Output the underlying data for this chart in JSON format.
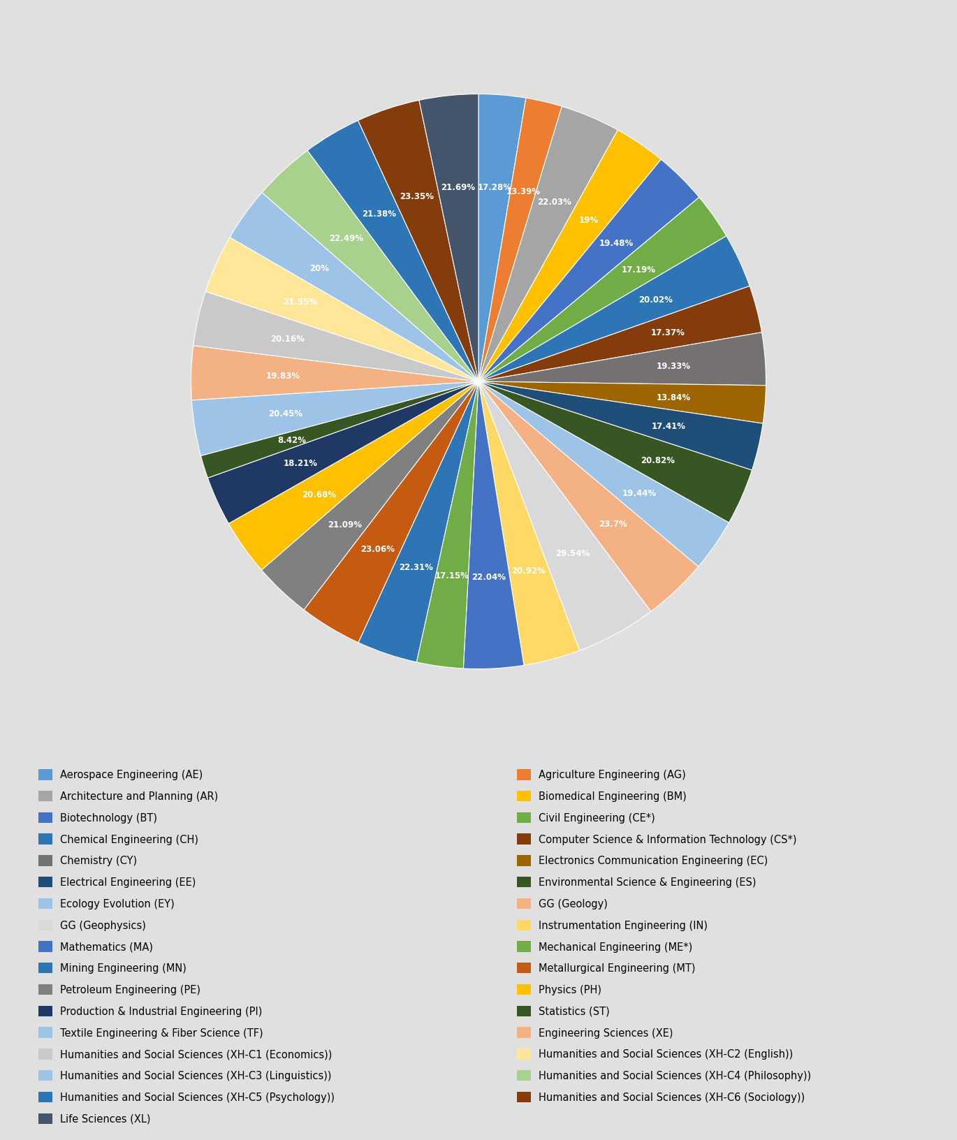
{
  "background_color": "#E0E0E0",
  "slices": [
    {
      "label": "Aerospace Engineering (AE)",
      "value": 17.28,
      "color": "#5B9BD5"
    },
    {
      "label": "Agriculture Engineering (AG)",
      "value": 13.39,
      "color": "#ED7D31"
    },
    {
      "label": "Architecture and Planning (AR)",
      "value": 22.03,
      "color": "#A5A5A5"
    },
    {
      "label": "Biomedical Engineering (BM)",
      "value": 19.0,
      "color": "#FFC000"
    },
    {
      "label": "Biotechnology (BT)",
      "value": 19.48,
      "color": "#4472C4"
    },
    {
      "label": "Civil Engineering (CE*)",
      "value": 17.19,
      "color": "#70AD47"
    },
    {
      "label": "Chemical Engineering (CH)",
      "value": 20.02,
      "color": "#2E75B6"
    },
    {
      "label": "Computer Science & Information Technology (CS*)",
      "value": 17.37,
      "color": "#843C0C"
    },
    {
      "label": "Chemistry (CY)",
      "value": 19.33,
      "color": "#767171"
    },
    {
      "label": "Electronics Communication Engineering (EC)",
      "value": 13.84,
      "color": "#9C6500"
    },
    {
      "label": "Electrical Engineering (EE)",
      "value": 17.41,
      "color": "#1F4E79"
    },
    {
      "label": "Environmental Science & Engineering (ES)",
      "value": 20.82,
      "color": "#375623"
    },
    {
      "label": "Ecology Evolution (EY)",
      "value": 19.44,
      "color": "#9DC3E6"
    },
    {
      "label": "GG (Geology)",
      "value": 23.7,
      "color": "#F4B183"
    },
    {
      "label": "GG (Geophysics)",
      "value": 29.54,
      "color": "#D9D9D9"
    },
    {
      "label": "Instrumentation Engineering (IN)",
      "value": 20.92,
      "color": "#FFD966"
    },
    {
      "label": "Mathematics (MA)",
      "value": 22.04,
      "color": "#4472C4"
    },
    {
      "label": "Mechanical Engineering (ME*)",
      "value": 17.15,
      "color": "#70AD47"
    },
    {
      "label": "Mining Engineering (MN)",
      "value": 22.31,
      "color": "#2E75B6"
    },
    {
      "label": "Metallurgical Engineering (MT)",
      "value": 23.06,
      "color": "#C55A11"
    },
    {
      "label": "Petroleum Engineering (PE)",
      "value": 21.09,
      "color": "#808080"
    },
    {
      "label": "Physics (PH)",
      "value": 20.68,
      "color": "#FFC000"
    },
    {
      "label": "Production & Industrial Engineering (PI)",
      "value": 18.21,
      "color": "#1F3864"
    },
    {
      "label": "Statistics (ST)",
      "value": 8.42,
      "color": "#375623"
    },
    {
      "label": "Textile Engineering & Fiber Science (TF)",
      "value": 20.45,
      "color": "#9DC3E6"
    },
    {
      "label": "Engineering Sciences (XE)",
      "value": 19.83,
      "color": "#F4B183"
    },
    {
      "label": "Humanities and Social Sciences (XH-C1 (Economics))",
      "value": 20.16,
      "color": "#C9C9C9"
    },
    {
      "label": "Humanities and Social Sciences (XH-C2 (English))",
      "value": 21.55,
      "color": "#FFE699"
    },
    {
      "label": "Humanities and Social Sciences (XH-C3 (Linguistics))",
      "value": 20.0,
      "color": "#9DC3E6"
    },
    {
      "label": "Humanities and Social Sciences (XH-C4 (Philosophy))",
      "value": 22.49,
      "color": "#A9D18E"
    },
    {
      "label": "Humanities and Social Sciences (XH-C5 (Psychology))",
      "value": 21.38,
      "color": "#2E75B6"
    },
    {
      "label": "Humanities and Social Sciences (XH-C6 (Sociology))",
      "value": 23.35,
      "color": "#843C0C"
    },
    {
      "label": "Life Sciences (XL)",
      "value": 21.69,
      "color": "#44546A"
    }
  ],
  "legend_left": [
    "Aerospace Engineering (AE)",
    "Architecture and Planning (AR)",
    "Biotechnology (BT)",
    "Chemical Engineering (CH)",
    "Chemistry (CY)",
    "Electrical Engineering (EE)",
    "Ecology Evolution (EY)",
    "GG (Geophysics)",
    "Mathematics (MA)",
    "Mining Engineering (MN)",
    "Petroleum Engineering (PE)",
    "Production & Industrial Engineering (PI)",
    "Textile Engineering & Fiber Science (TF)",
    "Humanities and Social Sciences (XH-C1 (Economics))",
    "Humanities and Social Sciences (XH-C3 (Linguistics))",
    "Humanities and Social Sciences (XH-C5 (Psychology))",
    "Life Sciences (XL)"
  ],
  "legend_right": [
    "Agriculture Engineering (AG)",
    "Biomedical Engineering (BM)",
    "Civil Engineering (CE*)",
    "Computer Science & Information Technology (CS*)",
    "Electronics Communication Engineering (EC)",
    "Environmental Science & Engineering (ES)",
    "GG (Geology)",
    "Instrumentation Engineering (IN)",
    "Mechanical Engineering (ME*)",
    "Metallurgical Engineering (MT)",
    "Physics (PH)",
    "Statistics (ST)",
    "Engineering Sciences (XE)",
    "Humanities and Social Sciences (XH-C2 (English))",
    "Humanities and Social Sciences (XH-C4 (Philosophy))",
    "Humanities and Social Sciences (XH-C6 (Sociology))"
  ],
  "label_fontsize": 8.5,
  "legend_fontsize": 10.5
}
